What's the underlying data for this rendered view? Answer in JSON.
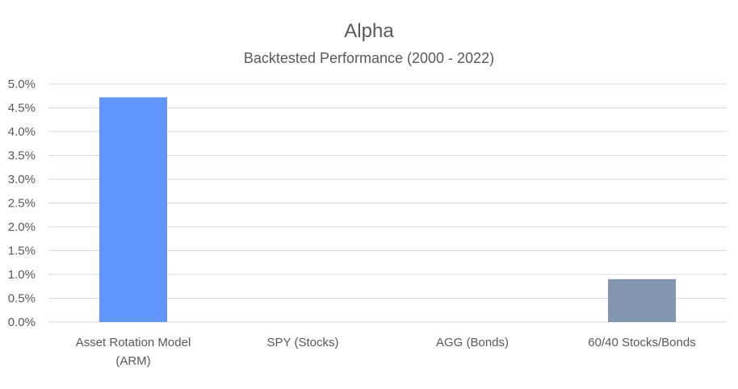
{
  "chart_data": {
    "type": "bar",
    "title": "Alpha",
    "subtitle": "Backtested Performance (2000 - 2022)",
    "xlabel": "",
    "ylabel": "",
    "ylim": [
      0,
      0.05
    ],
    "yticks": [
      "0.0%",
      "0.5%",
      "1.0%",
      "1.5%",
      "2.0%",
      "2.5%",
      "3.0%",
      "3.5%",
      "4.0%",
      "4.5%",
      "5.0%"
    ],
    "grid": true,
    "legend": "none",
    "categories": [
      [
        "Asset Rotation Model",
        "(ARM)"
      ],
      [
        "SPY (Stocks)"
      ],
      [
        "AGG (Bonds)"
      ],
      [
        "60/40 Stocks/Bonds"
      ]
    ],
    "values": [
      0.0472,
      0,
      0,
      0.009
    ],
    "colors": [
      "#6196ff",
      "#6196ff",
      "#6196ff",
      "#8497b0"
    ]
  }
}
